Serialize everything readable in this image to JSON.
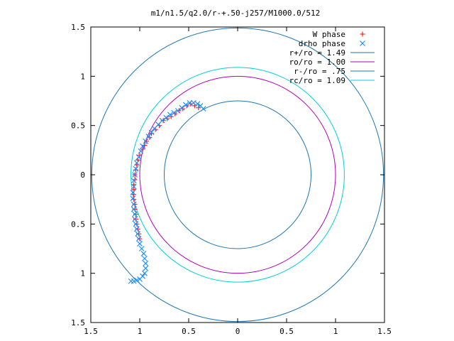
{
  "chart_data": {
    "type": "scatter",
    "title": "m1/n1.5/q2.0/r-+.50-j257/M1000.0/512",
    "xlabel": "",
    "ylabel": "",
    "xlim": [
      -1.5,
      1.5
    ],
    "ylim": [
      -1.5,
      1.5
    ],
    "x_ticks": [
      -1.5,
      -1,
      -0.5,
      0,
      0.5,
      1,
      1.5
    ],
    "y_ticks": [
      -1.5,
      -1,
      -0.5,
      0,
      0.5,
      1,
      1.5
    ],
    "x_tick_labels": [
      "1.5",
      "1",
      "0.5",
      "0",
      "0.5",
      "1",
      "1.5"
    ],
    "y_tick_labels": [
      "1.5",
      "1",
      "0.5",
      "0",
      "0.5",
      "1",
      "1.5"
    ],
    "grid": false,
    "legend_position": "top-right",
    "series": [
      {
        "name": "W phase",
        "kind": "points",
        "marker": "+",
        "color": "#ff0000",
        "x": [
          -0.4,
          -0.44,
          -0.48,
          -0.52,
          -0.56,
          -0.6,
          -0.64,
          -0.68,
          -0.72,
          -0.76,
          -0.8,
          -0.84,
          -0.88,
          -0.9,
          -0.93,
          -0.95,
          -0.97,
          -1.0,
          -1.02,
          -1.03,
          -1.04,
          -1.05,
          -1.05,
          -1.06,
          -1.06,
          -1.06,
          -1.06,
          -1.05,
          -1.05,
          -1.04,
          -1.04,
          -1.03,
          -1.02,
          -1.01,
          -1.0
        ],
        "y": [
          0.68,
          0.7,
          0.72,
          0.7,
          0.67,
          0.65,
          0.62,
          0.59,
          0.57,
          0.55,
          0.5,
          0.46,
          0.42,
          0.38,
          0.34,
          0.3,
          0.26,
          0.2,
          0.15,
          0.1,
          0.05,
          0.0,
          -0.05,
          -0.1,
          -0.15,
          -0.2,
          -0.25,
          -0.3,
          -0.35,
          -0.4,
          -0.45,
          -0.5,
          -0.55,
          -0.6,
          -0.65
        ]
      },
      {
        "name": "drho phase",
        "kind": "points",
        "marker": "x",
        "color": "#1e90ff",
        "x": [
          -0.35,
          -0.38,
          -0.41,
          -0.45,
          -0.49,
          -0.53,
          -0.57,
          -0.61,
          -0.65,
          -0.69,
          -0.73,
          -0.77,
          -0.81,
          -0.85,
          -0.88,
          -0.91,
          -0.94,
          -0.97,
          -0.99,
          -1.01,
          -1.03,
          -1.04,
          -1.05,
          -1.06,
          -1.06,
          -1.07,
          -1.07,
          -1.06,
          -1.06,
          -1.05,
          -1.05,
          -1.04,
          -1.03,
          -1.02,
          -1.01,
          -1.0,
          -0.98,
          -0.96,
          -0.95,
          -0.94,
          -0.94,
          -0.95,
          -0.97,
          -1.0,
          -1.03,
          -1.06,
          -1.09
        ],
        "y": [
          0.67,
          0.7,
          0.72,
          0.73,
          0.73,
          0.71,
          0.68,
          0.65,
          0.63,
          0.61,
          0.58,
          0.55,
          0.51,
          0.47,
          0.43,
          0.39,
          0.34,
          0.29,
          0.24,
          0.18,
          0.12,
          0.06,
          0.0,
          -0.06,
          -0.12,
          -0.18,
          -0.24,
          -0.3,
          -0.35,
          -0.4,
          -0.45,
          -0.5,
          -0.55,
          -0.6,
          -0.65,
          -0.7,
          -0.75,
          -0.8,
          -0.85,
          -0.9,
          -0.95,
          -1.0,
          -1.03,
          -1.06,
          -1.07,
          -1.08,
          -1.08
        ]
      },
      {
        "name": "r+/ro = 1.49",
        "kind": "circle",
        "radius": 1.49,
        "color": "#1f77b4"
      },
      {
        "name": "ro/ro = 1.00",
        "kind": "circle",
        "radius": 1.0,
        "color": "#b000b8"
      },
      {
        "name": "r-/ro = .75",
        "kind": "circle",
        "radius": 0.75,
        "color": "#1f77b4"
      },
      {
        "name": "rc/ro = 1.09",
        "kind": "circle",
        "radius": 1.09,
        "color": "#00d0d8"
      }
    ]
  }
}
